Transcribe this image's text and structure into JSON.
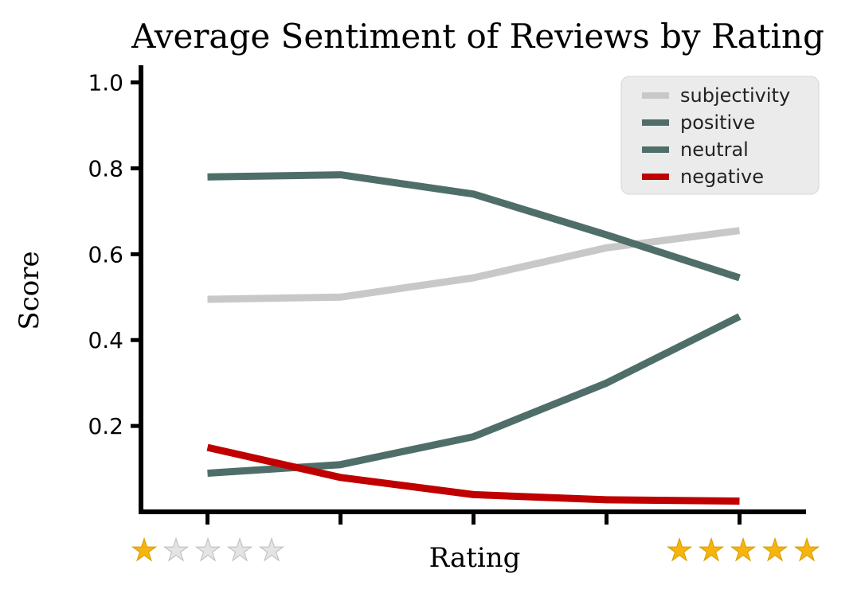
{
  "chart_data": {
    "type": "line",
    "title": "Average Sentiment of Reviews by Rating",
    "xlabel": "Rating",
    "ylabel": "Score",
    "x": [
      1,
      2,
      3,
      4,
      5
    ],
    "xlim": [
      0.5,
      5.5
    ],
    "ylim": [
      0.0,
      1.04
    ],
    "yticks": [
      0.2,
      0.4,
      0.6,
      0.8,
      1.0
    ],
    "ytick_labels": [
      "0.2",
      "0.4",
      "0.6",
      "0.8",
      "1.0"
    ],
    "grid": false,
    "legend_position": "top-right",
    "series": [
      {
        "name": "subjectivity",
        "color": "#c8c8c8",
        "values": [
          0.495,
          0.5,
          0.545,
          0.615,
          0.655
        ]
      },
      {
        "name": "positive",
        "color": "#4f6e6a",
        "values": [
          0.78,
          0.785,
          0.74,
          0.645,
          0.545
        ]
      },
      {
        "name": "neutral",
        "color": "#4f6e6a",
        "values": [
          0.09,
          0.11,
          0.175,
          0.3,
          0.455
        ]
      },
      {
        "name": "negative",
        "color": "#c00000",
        "values": [
          0.15,
          0.08,
          0.04,
          0.028,
          0.025
        ]
      }
    ],
    "rating_scales": [
      {
        "side": "left",
        "filled": 1,
        "total": 5
      },
      {
        "side": "right",
        "filled": 5,
        "total": 5
      }
    ],
    "star_color": "#f6b40e",
    "star_empty_color": "#e4e4e4"
  }
}
